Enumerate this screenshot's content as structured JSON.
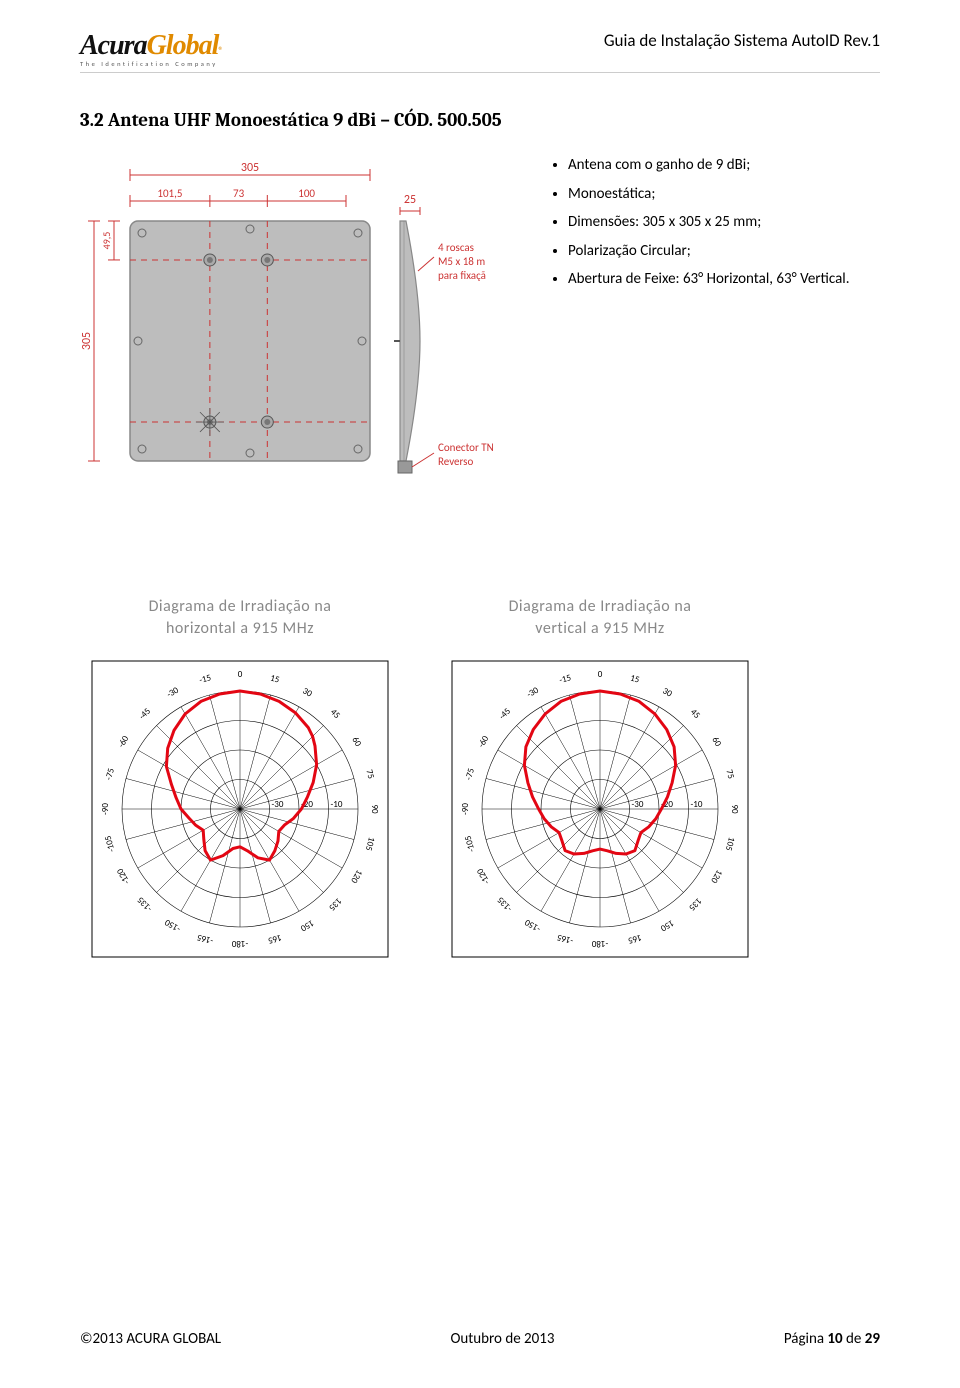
{
  "header": {
    "logo_main": "Acura",
    "logo_accent": "Global",
    "logo_reg": "®",
    "logo_tagline": "The Identification Company",
    "doc_title": "Guia de Instalação Sistema AutoID Rev.1"
  },
  "section_title": "3.2 Antena UHF Monoestática 9 dBi – CÓD. 500.505",
  "tech_drawing": {
    "dims": {
      "total_width": "305",
      "d1": "101,5",
      "d2": "73",
      "d3": "100",
      "depth": "25",
      "total_height": "305",
      "offset_v": "49,5"
    },
    "annotations": {
      "screws": "4 roscas\nM5 x 18 m\npara fixaçã",
      "connector": "Conector TN\nReverso"
    },
    "colors": {
      "panel_fill": "#bdbdbd",
      "panel_stroke": "#888888",
      "dim_line": "#cc3333",
      "dash_line": "#cc3333",
      "annotation_text": "#cc3333",
      "dim_text": "#cc3333"
    }
  },
  "specs": [
    "Antena com o ganho de 9 dBi;",
    "Monoestática;",
    "Dimensões: 305 x 305 x 25 mm;",
    "Polarização Circular;",
    "Abertura de Feixe: 63° Horizontal, 63° Vertical."
  ],
  "diagrams": {
    "horizontal": {
      "title_l1": "Diagrama de Irradiação na",
      "title_l2": "horizontal a 915 MHz",
      "angle_ticks": [
        -180,
        -165,
        -150,
        -135,
        -120,
        -105,
        -90,
        -75,
        -60,
        -45,
        -30,
        -15,
        0,
        15,
        30,
        45,
        60,
        75,
        90,
        105,
        120,
        135,
        150,
        165,
        180
      ],
      "ring_labels": [
        "-10",
        "-20",
        "-30"
      ],
      "line_color": "#e30613",
      "line_width": 3,
      "pattern_points": [
        [
          -180,
          0.32
        ],
        [
          -170,
          0.34
        ],
        [
          -160,
          0.42
        ],
        [
          -150,
          0.5
        ],
        [
          -140,
          0.46
        ],
        [
          -130,
          0.4
        ],
        [
          -120,
          0.36
        ],
        [
          -110,
          0.4
        ],
        [
          -100,
          0.44
        ],
        [
          -90,
          0.5
        ],
        [
          -80,
          0.55
        ],
        [
          -70,
          0.62
        ],
        [
          -60,
          0.72
        ],
        [
          -50,
          0.8
        ],
        [
          -40,
          0.87
        ],
        [
          -30,
          0.93
        ],
        [
          -20,
          0.97
        ],
        [
          -10,
          0.99
        ],
        [
          0,
          1.0
        ],
        [
          10,
          0.99
        ],
        [
          20,
          0.97
        ],
        [
          30,
          0.94
        ],
        [
          40,
          0.9
        ],
        [
          45,
          0.87
        ],
        [
          50,
          0.83
        ],
        [
          60,
          0.75
        ],
        [
          70,
          0.66
        ],
        [
          80,
          0.58
        ],
        [
          90,
          0.52
        ],
        [
          100,
          0.46
        ],
        [
          110,
          0.4
        ],
        [
          120,
          0.38
        ],
        [
          130,
          0.42
        ],
        [
          140,
          0.46
        ],
        [
          150,
          0.5
        ],
        [
          160,
          0.44
        ],
        [
          170,
          0.36
        ],
        [
          180,
          0.32
        ]
      ]
    },
    "vertical": {
      "title_l1": "Diagrama de Irradiação na",
      "title_l2": "vertical a 915 MHz",
      "angle_ticks": [
        -180,
        -165,
        -150,
        -135,
        -120,
        -105,
        -90,
        -75,
        -60,
        -45,
        -30,
        -15,
        0,
        15,
        30,
        45,
        60,
        75,
        90,
        105,
        120,
        135,
        150,
        165,
        180
      ],
      "ring_labels": [
        "-10",
        "-20",
        "-30"
      ],
      "line_color": "#e30613",
      "line_width": 3,
      "pattern_points": [
        [
          -180,
          0.34
        ],
        [
          -170,
          0.36
        ],
        [
          -160,
          0.4
        ],
        [
          -150,
          0.44
        ],
        [
          -140,
          0.46
        ],
        [
          -130,
          0.42
        ],
        [
          -120,
          0.4
        ],
        [
          -110,
          0.44
        ],
        [
          -100,
          0.48
        ],
        [
          -90,
          0.52
        ],
        [
          -80,
          0.58
        ],
        [
          -70,
          0.65
        ],
        [
          -60,
          0.74
        ],
        [
          -50,
          0.82
        ],
        [
          -40,
          0.88
        ],
        [
          -30,
          0.93
        ],
        [
          -20,
          0.97
        ],
        [
          -10,
          0.99
        ],
        [
          0,
          1.0
        ],
        [
          10,
          0.99
        ],
        [
          20,
          0.97
        ],
        [
          30,
          0.93
        ],
        [
          40,
          0.88
        ],
        [
          50,
          0.82
        ],
        [
          60,
          0.74
        ],
        [
          70,
          0.65
        ],
        [
          80,
          0.58
        ],
        [
          90,
          0.52
        ],
        [
          100,
          0.48
        ],
        [
          110,
          0.44
        ],
        [
          120,
          0.4
        ],
        [
          130,
          0.42
        ],
        [
          140,
          0.46
        ],
        [
          150,
          0.44
        ],
        [
          160,
          0.4
        ],
        [
          170,
          0.36
        ],
        [
          180,
          0.34
        ]
      ]
    }
  },
  "footer": {
    "left": "©2013 ACURA GLOBAL",
    "center": "Outubro de 2013",
    "right_prefix": "Página ",
    "right_page": "10",
    "right_mid": " de ",
    "right_total": "29"
  }
}
